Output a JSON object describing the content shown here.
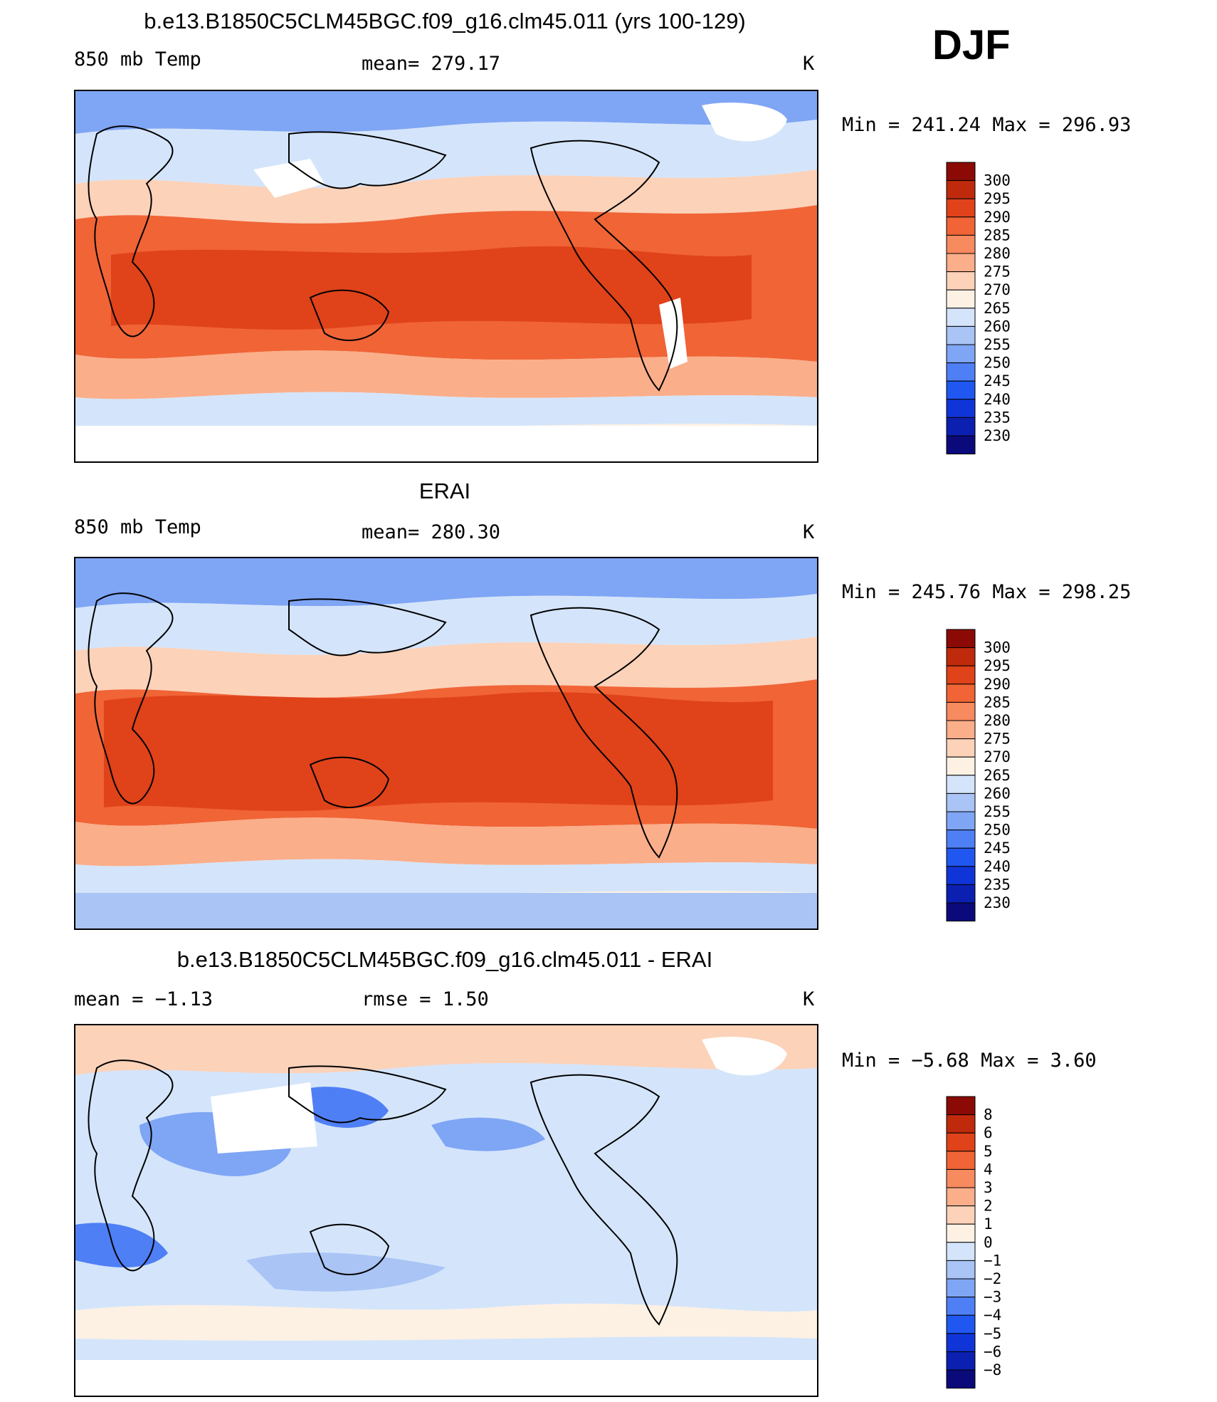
{
  "figure": {
    "season": "DJF",
    "colors": {
      "temp_scale": [
        "#0a0a7a",
        "#0b1fb0",
        "#0f35d8",
        "#1f57f0",
        "#4f7ff5",
        "#7fa5f5",
        "#a9c4f5",
        "#d4e5fb",
        "#fdf1e4",
        "#fcd2b9",
        "#fbae8a",
        "#f88a5f",
        "#f06436",
        "#e0421a",
        "#c02a0c",
        "#8b0a05"
      ],
      "diff_scale": [
        "#0a0a7a",
        "#0b1fb0",
        "#0f35d8",
        "#1f57f0",
        "#4f7ff5",
        "#7fa5f5",
        "#a9c4f5",
        "#d4e5fb",
        "#fdf1e4",
        "#fcd2b9",
        "#fbae8a",
        "#f88a5f",
        "#f06436",
        "#e0421a",
        "#c02a0c",
        "#8b0a05"
      ]
    }
  },
  "panels": [
    {
      "title": "b.e13.B1850C5CLM45BGC.f09_g16.clm45.011 (yrs 100-129)",
      "left_label": "850 mb Temp",
      "center_label": "mean= 279.17",
      "units": "K",
      "minmax": "Min = 241.24 Max = 296.93"
    },
    {
      "title": "ERAI",
      "left_label": "850 mb Temp",
      "center_label": "mean= 280.30",
      "units": "K",
      "minmax": "Min = 245.76 Max = 298.25"
    },
    {
      "title": "b.e13.B1850C5CLM45BGC.f09_g16.clm45.011 - ERAI",
      "left_label": "mean =   −1.13",
      "center_label": "rmse =    1.50",
      "units": "K",
      "minmax": "Min =  −5.68 Max =    3.60"
    }
  ],
  "chart_data": [
    {
      "type": "heatmap",
      "title": "b.e13.B1850C5CLM45BGC.f09_g16.clm45.011 (yrs 100-129)",
      "variable": "850 mb Temp",
      "units": "K",
      "mean": 279.17,
      "min": 241.24,
      "max": 296.93,
      "colorbar_levels": [
        "300",
        "295",
        "290",
        "285",
        "280",
        "275",
        "270",
        "265",
        "260",
        "255",
        "250",
        "245",
        "240",
        "235",
        "230"
      ]
    },
    {
      "type": "heatmap",
      "title": "ERAI",
      "variable": "850 mb Temp",
      "units": "K",
      "mean": 280.3,
      "min": 245.76,
      "max": 298.25,
      "colorbar_levels": [
        "300",
        "295",
        "290",
        "285",
        "280",
        "275",
        "270",
        "265",
        "260",
        "255",
        "250",
        "245",
        "240",
        "235",
        "230"
      ]
    },
    {
      "type": "heatmap",
      "title": "b.e13.B1850C5CLM45BGC.f09_g16.clm45.011 - ERAI",
      "variable": "850 mb Temp difference",
      "units": "K",
      "mean": -1.13,
      "rmse": 1.5,
      "min": -5.68,
      "max": 3.6,
      "colorbar_levels": [
        "8",
        "6",
        "5",
        "4",
        "3",
        "2",
        "1",
        "0",
        "−1",
        "−2",
        "−3",
        "−4",
        "−5",
        "−6",
        "−8"
      ]
    }
  ]
}
